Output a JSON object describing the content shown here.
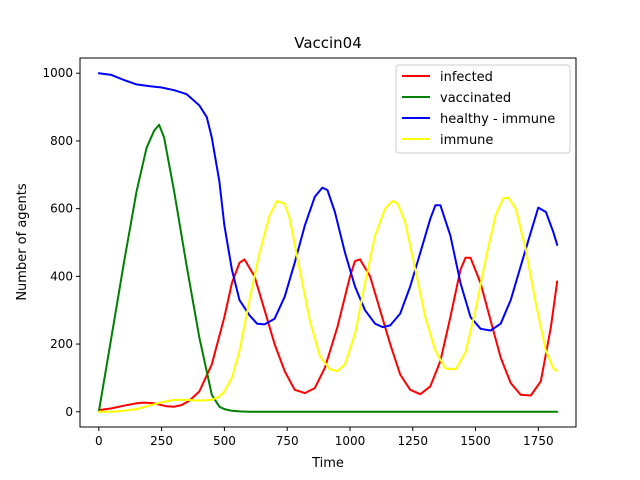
{
  "chart_data": {
    "type": "line",
    "title": "Vaccin04",
    "xlabel": "Time",
    "ylabel": "Number of agents",
    "xlim": [
      -75,
      1900
    ],
    "ylim": [
      -45,
      1045
    ],
    "xticks": [
      0,
      250,
      500,
      750,
      1000,
      1250,
      1500,
      1750
    ],
    "yticks": [
      0,
      200,
      400,
      600,
      800,
      1000
    ],
    "grid": false,
    "legend_position": "top-right",
    "series": [
      {
        "name": "infected",
        "color": "#ff0000",
        "x": [
          0,
          50,
          100,
          150,
          180,
          220,
          270,
          300,
          330,
          360,
          400,
          450,
          500,
          530,
          560,
          580,
          620,
          660,
          700,
          740,
          780,
          820,
          860,
          900,
          950,
          1000,
          1020,
          1040,
          1080,
          1120,
          1160,
          1200,
          1240,
          1280,
          1320,
          1360,
          1400,
          1440,
          1460,
          1480,
          1520,
          1560,
          1600,
          1640,
          1680,
          1720,
          1760,
          1800,
          1825
        ],
        "y": [
          5,
          10,
          18,
          25,
          27,
          25,
          16,
          15,
          20,
          32,
          60,
          140,
          280,
          380,
          440,
          450,
          400,
          300,
          200,
          120,
          65,
          55,
          70,
          130,
          250,
          400,
          445,
          450,
          400,
          300,
          200,
          110,
          65,
          52,
          75,
          150,
          280,
          420,
          455,
          455,
          380,
          270,
          160,
          85,
          50,
          48,
          90,
          250,
          385
        ]
      },
      {
        "name": "vaccinated",
        "color": "#008000",
        "x": [
          0,
          50,
          100,
          150,
          190,
          220,
          240,
          260,
          300,
          350,
          400,
          450,
          480,
          500,
          530,
          560,
          600,
          1000,
          1825
        ],
        "y": [
          0,
          220,
          440,
          650,
          780,
          830,
          848,
          810,
          650,
          430,
          220,
          50,
          15,
          8,
          3,
          1,
          0,
          0,
          0
        ]
      },
      {
        "name": "healthy - immune",
        "color": "#0000ff",
        "x": [
          0,
          50,
          100,
          150,
          200,
          250,
          300,
          350,
          400,
          430,
          450,
          480,
          500,
          530,
          560,
          600,
          630,
          660,
          700,
          740,
          780,
          820,
          860,
          890,
          910,
          940,
          980,
          1020,
          1060,
          1100,
          1130,
          1160,
          1200,
          1240,
          1280,
          1320,
          1340,
          1360,
          1400,
          1440,
          1480,
          1520,
          1560,
          1600,
          1640,
          1680,
          1720,
          1750,
          1780,
          1810,
          1825
        ],
        "y": [
          1000,
          995,
          980,
          967,
          962,
          958,
          950,
          938,
          905,
          870,
          810,
          680,
          550,
          420,
          330,
          285,
          260,
          258,
          275,
          340,
          440,
          550,
          635,
          662,
          655,
          590,
          470,
          370,
          300,
          260,
          250,
          255,
          290,
          370,
          470,
          570,
          610,
          610,
          520,
          380,
          280,
          245,
          240,
          260,
          330,
          430,
          530,
          603,
          590,
          530,
          493
        ]
      },
      {
        "name": "immune",
        "color": "#ffff00",
        "x": [
          0,
          50,
          100,
          150,
          200,
          250,
          300,
          350,
          400,
          450,
          480,
          500,
          530,
          560,
          600,
          640,
          680,
          710,
          740,
          760,
          800,
          840,
          880,
          920,
          950,
          980,
          1020,
          1060,
          1100,
          1140,
          1170,
          1190,
          1220,
          1260,
          1300,
          1340,
          1380,
          1420,
          1460,
          1500,
          1540,
          1580,
          1610,
          1630,
          1660,
          1700,
          1740,
          1780,
          1810,
          1825
        ],
        "y": [
          0,
          0,
          3,
          8,
          18,
          28,
          35,
          35,
          33,
          35,
          45,
          60,
          100,
          180,
          330,
          470,
          580,
          622,
          615,
          570,
          420,
          270,
          165,
          125,
          120,
          140,
          230,
          380,
          520,
          600,
          623,
          615,
          560,
          420,
          280,
          180,
          128,
          125,
          175,
          300,
          450,
          580,
          630,
          633,
          600,
          480,
          320,
          180,
          128,
          120
        ]
      }
    ]
  }
}
